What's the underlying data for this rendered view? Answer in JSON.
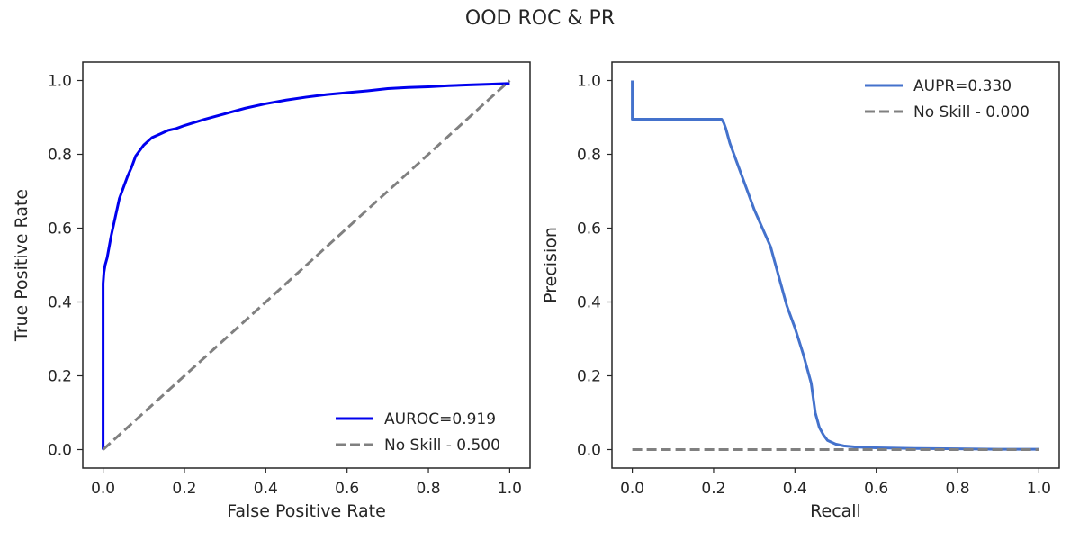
{
  "figure": {
    "title": "OOD ROC & PR"
  },
  "chart_data": [
    {
      "type": "line",
      "xlabel": "False Positive Rate",
      "ylabel": "True Positive Rate",
      "xlim": [
        -0.05,
        1.05
      ],
      "ylim": [
        -0.05,
        1.05
      ],
      "xticks": [
        0.0,
        0.2,
        0.4,
        0.6,
        0.8,
        1.0
      ],
      "yticks": [
        0.0,
        0.2,
        0.4,
        0.6,
        0.8,
        1.0
      ],
      "tick_labels_x": [
        "0.0",
        "0.2",
        "0.4",
        "0.6",
        "0.8",
        "1.0"
      ],
      "tick_labels_y": [
        "0.0",
        "0.2",
        "0.4",
        "0.6",
        "0.8",
        "1.0"
      ],
      "grid": false,
      "legend_position": "lower-right",
      "series": [
        {
          "name": "AUROC=0.919",
          "color": "#0000ee",
          "style": "solid",
          "x": [
            0.0,
            0.0,
            0.002,
            0.005,
            0.01,
            0.015,
            0.02,
            0.03,
            0.04,
            0.05,
            0.06,
            0.07,
            0.08,
            0.09,
            0.1,
            0.12,
            0.14,
            0.16,
            0.18,
            0.2,
            0.25,
            0.3,
            0.35,
            0.4,
            0.45,
            0.5,
            0.55,
            0.6,
            0.65,
            0.7,
            0.75,
            0.8,
            0.85,
            0.9,
            0.95,
            1.0
          ],
          "y": [
            0.0,
            0.45,
            0.48,
            0.5,
            0.52,
            0.55,
            0.58,
            0.63,
            0.68,
            0.71,
            0.74,
            0.765,
            0.795,
            0.81,
            0.825,
            0.845,
            0.855,
            0.865,
            0.87,
            0.878,
            0.895,
            0.91,
            0.925,
            0.937,
            0.947,
            0.955,
            0.962,
            0.967,
            0.972,
            0.978,
            0.981,
            0.983,
            0.986,
            0.988,
            0.99,
            0.992
          ]
        },
        {
          "name": "No Skill - 0.500",
          "color": "#808080",
          "style": "dashed",
          "x": [
            0.0,
            1.0
          ],
          "y": [
            0.0,
            1.0
          ]
        }
      ]
    },
    {
      "type": "line",
      "xlabel": "Recall",
      "ylabel": "Precision",
      "xlim": [
        -0.05,
        1.05
      ],
      "ylim": [
        -0.05,
        1.05
      ],
      "xticks": [
        0.0,
        0.2,
        0.4,
        0.6,
        0.8,
        1.0
      ],
      "yticks": [
        0.0,
        0.2,
        0.4,
        0.6,
        0.8,
        1.0
      ],
      "tick_labels_x": [
        "0.0",
        "0.2",
        "0.4",
        "0.6",
        "0.8",
        "1.0"
      ],
      "tick_labels_y": [
        "0.0",
        "0.2",
        "0.4",
        "0.6",
        "0.8",
        "1.0"
      ],
      "grid": false,
      "legend_position": "upper-right",
      "series": [
        {
          "name": "AUPR=0.330",
          "color": "#4472cc",
          "style": "solid",
          "x": [
            0.0,
            0.0,
            0.22,
            0.225,
            0.23,
            0.24,
            0.25,
            0.26,
            0.28,
            0.3,
            0.32,
            0.34,
            0.36,
            0.37,
            0.38,
            0.4,
            0.42,
            0.44,
            0.45,
            0.46,
            0.47,
            0.48,
            0.5,
            0.52,
            0.55,
            0.6,
            0.7,
            0.8,
            0.9,
            1.0
          ],
          "y": [
            1.0,
            0.895,
            0.895,
            0.885,
            0.87,
            0.83,
            0.8,
            0.77,
            0.71,
            0.65,
            0.6,
            0.55,
            0.47,
            0.43,
            0.39,
            0.33,
            0.26,
            0.18,
            0.1,
            0.06,
            0.04,
            0.025,
            0.015,
            0.01,
            0.007,
            0.005,
            0.003,
            0.002,
            0.001,
            0.001
          ]
        },
        {
          "name": "No Skill - 0.000",
          "color": "#808080",
          "style": "dashed",
          "x": [
            0.0,
            1.0
          ],
          "y": [
            0.0,
            0.0
          ]
        }
      ]
    }
  ]
}
